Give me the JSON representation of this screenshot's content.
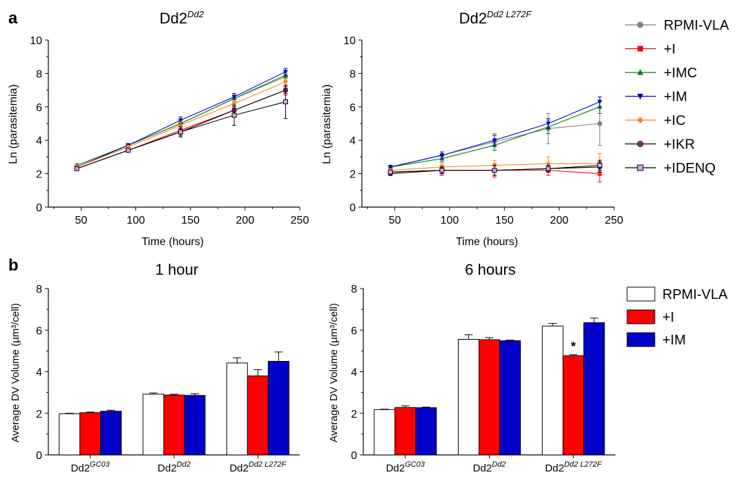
{
  "panel_labels": [
    "a",
    "b"
  ],
  "chart_data": [
    {
      "type": "line",
      "title_base": "Dd2",
      "title_sup": "Dd2",
      "xlabel": "Time (hours)",
      "ylabel": "Ln (parasitemia)",
      "xlim": [
        20,
        250
      ],
      "ylim": [
        0,
        10
      ],
      "xticks": [
        50,
        100,
        150,
        200,
        250
      ],
      "yticks": [
        0,
        2,
        4,
        6,
        8,
        10
      ],
      "x": [
        46,
        93,
        141,
        190,
        237
      ],
      "series": [
        {
          "name": "RPMI-VLA",
          "values": [
            2.4,
            3.7,
            5.0,
            6.5,
            7.8
          ],
          "errors": [
            0.1,
            0.1,
            0.2,
            0.2,
            0.2
          ]
        },
        {
          "name": "+I",
          "values": [
            2.3,
            3.4,
            4.6,
            5.8,
            7.0
          ],
          "errors": [
            0.1,
            0.1,
            0.2,
            0.2,
            0.3
          ]
        },
        {
          "name": "+IMC",
          "values": [
            2.5,
            3.7,
            5.0,
            6.5,
            7.9
          ],
          "errors": [
            0.1,
            0.1,
            0.2,
            0.2,
            0.2
          ]
        },
        {
          "name": "+IM",
          "values": [
            2.4,
            3.7,
            5.2,
            6.6,
            8.1
          ],
          "errors": [
            0.1,
            0.1,
            0.2,
            0.2,
            0.2
          ]
        },
        {
          "name": "+IC",
          "values": [
            2.4,
            3.6,
            4.9,
            6.2,
            7.5
          ],
          "errors": [
            0.1,
            0.1,
            0.2,
            0.2,
            0.2
          ]
        },
        {
          "name": "+IKR",
          "values": [
            2.3,
            3.4,
            4.5,
            5.8,
            7.0
          ],
          "errors": [
            0.1,
            0.1,
            0.2,
            0.2,
            0.2
          ]
        },
        {
          "name": "+IDENQ",
          "values": [
            2.3,
            3.4,
            4.5,
            5.5,
            6.3
          ],
          "errors": [
            0.1,
            0.1,
            0.3,
            0.6,
            1.0
          ]
        }
      ]
    },
    {
      "type": "line",
      "title_base": "Dd2",
      "title_sup": "Dd2 L272F",
      "xlabel": "Time (hours)",
      "ylabel": "Ln (parasitemia)",
      "xlim": [
        20,
        250
      ],
      "ylim": [
        0,
        10
      ],
      "xticks": [
        50,
        100,
        150,
        200,
        250
      ],
      "yticks": [
        0,
        2,
        4,
        6,
        8,
        10
      ],
      "x": [
        46,
        93,
        141,
        190,
        237
      ],
      "series": [
        {
          "name": "RPMI-VLA",
          "values": [
            2.4,
            3.1,
            3.9,
            4.7,
            5.0
          ],
          "errors": [
            0.1,
            0.2,
            0.5,
            0.9,
            1.3
          ]
        },
        {
          "name": "+I",
          "values": [
            2.1,
            2.2,
            2.2,
            2.2,
            2.0
          ],
          "errors": [
            0.1,
            0.3,
            0.4,
            0.3,
            0.5
          ]
        },
        {
          "name": "+IMC",
          "values": [
            2.4,
            2.9,
            3.7,
            4.8,
            6.0
          ],
          "errors": [
            0.1,
            0.2,
            0.3,
            0.4,
            0.4
          ]
        },
        {
          "name": "+IM",
          "values": [
            2.4,
            3.1,
            4.0,
            5.0,
            6.3
          ],
          "errors": [
            0.1,
            0.2,
            0.3,
            0.3,
            0.3
          ]
        },
        {
          "name": "+IC",
          "values": [
            2.2,
            2.4,
            2.5,
            2.6,
            2.6
          ],
          "errors": [
            0.1,
            0.2,
            0.3,
            0.4,
            0.6
          ]
        },
        {
          "name": "+IKR",
          "values": [
            2.0,
            2.2,
            2.2,
            2.3,
            2.4
          ],
          "errors": [
            0.1,
            0.2,
            0.3,
            0.2,
            0.3
          ]
        },
        {
          "name": "+IDENQ",
          "values": [
            2.1,
            2.2,
            2.2,
            2.3,
            2.5
          ],
          "errors": [
            0.1,
            0.2,
            0.3,
            0.2,
            0.3
          ]
        }
      ]
    },
    {
      "type": "bar",
      "title": "1 hour",
      "ylabel": "Average DV Volume (µm³/cell)",
      "ylim": [
        0,
        8
      ],
      "yticks": [
        0,
        2,
        4,
        6,
        8
      ],
      "categories": [
        {
          "base": "Dd2",
          "sup": "GC03"
        },
        {
          "base": "Dd2",
          "sup": "Dd2"
        },
        {
          "base": "Dd2",
          "sup": "Dd2 L272F"
        }
      ],
      "series": [
        {
          "name": "RPMI-VLA",
          "values": [
            1.98,
            2.92,
            4.42
          ],
          "errors": [
            0.02,
            0.06,
            0.25
          ]
        },
        {
          "name": "+I",
          "values": [
            2.03,
            2.88,
            3.8
          ],
          "errors": [
            0.03,
            0.04,
            0.3
          ]
        },
        {
          "name": "+IM",
          "values": [
            2.1,
            2.86,
            4.5
          ],
          "errors": [
            0.05,
            0.08,
            0.45
          ]
        }
      ],
      "annotations": []
    },
    {
      "type": "bar",
      "title": "6 hours",
      "ylabel": "Average DV Volume (µm³/cell)",
      "ylim": [
        0,
        8
      ],
      "yticks": [
        0,
        2,
        4,
        6,
        8
      ],
      "categories": [
        {
          "base": "Dd2",
          "sup": "GC03"
        },
        {
          "base": "Dd2",
          "sup": "Dd2"
        },
        {
          "base": "Dd2",
          "sup": "Dd2 L272F"
        }
      ],
      "series": [
        {
          "name": "RPMI-VLA",
          "values": [
            2.18,
            5.56,
            6.2
          ],
          "errors": [
            0.02,
            0.22,
            0.12
          ]
        },
        {
          "name": "+I",
          "values": [
            2.28,
            5.54,
            4.77
          ],
          "errors": [
            0.08,
            0.1,
            0.05
          ]
        },
        {
          "name": "+IM",
          "values": [
            2.27,
            5.49,
            6.36
          ],
          "errors": [
            0.03,
            0.03,
            0.22
          ]
        }
      ],
      "annotations": [
        {
          "text": "*",
          "category": 2,
          "series": 1
        }
      ]
    }
  ],
  "legend_line": {
    "entries": [
      {
        "label": "RPMI-VLA",
        "color": "#808080",
        "marker": "circle"
      },
      {
        "label": "+I",
        "color": "#ff0000",
        "marker": "square"
      },
      {
        "label": "+IMC",
        "color": "#008000",
        "marker": "triangle-up"
      },
      {
        "label": "+IM",
        "color": "#0000c8",
        "marker": "triangle-down"
      },
      {
        "label": "+IC",
        "color": "#ff7f0e",
        "marker": "diamond"
      },
      {
        "label": "+IKR",
        "color": "#000000",
        "marker": "circle-purple",
        "fill": "#a020a0"
      },
      {
        "label": "+IDENQ",
        "color": "#000000",
        "marker": "square-pink",
        "fill": "#e0a0f0"
      }
    ]
  },
  "legend_bar": {
    "entries": [
      {
        "label": "RPMI-VLA",
        "fill": "#ffffff"
      },
      {
        "label": "+I",
        "fill": "#ff0000"
      },
      {
        "label": "+IM",
        "fill": "#0000c8"
      }
    ]
  }
}
